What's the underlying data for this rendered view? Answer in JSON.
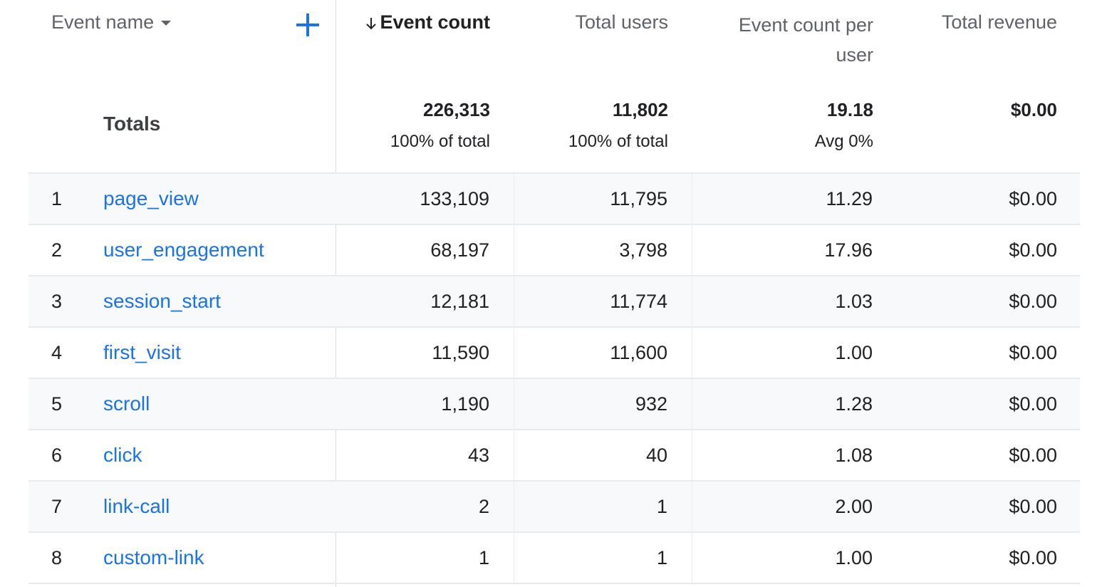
{
  "header": {
    "dimension_label": "Event name",
    "add_dimension_icon": "plus-icon",
    "sort_icon": "arrow-down-icon",
    "columns": [
      "Event count",
      "Total users",
      "Event count per",
      "user",
      "Total revenue"
    ]
  },
  "totals": {
    "label": "Totals",
    "event_count": "226,313",
    "event_count_sub": "100% of total",
    "total_users": "11,802",
    "total_users_sub": "100% of total",
    "per_user": "19.18",
    "per_user_sub": "Avg 0%",
    "revenue": "$0.00"
  },
  "rows": [
    {
      "index": "1",
      "name": "page_view",
      "event_count": "133,109",
      "total_users": "11,795",
      "per_user": "11.29",
      "revenue": "$0.00"
    },
    {
      "index": "2",
      "name": "user_engagement",
      "event_count": "68,197",
      "total_users": "3,798",
      "per_user": "17.96",
      "revenue": "$0.00"
    },
    {
      "index": "3",
      "name": "session_start",
      "event_count": "12,181",
      "total_users": "11,774",
      "per_user": "1.03",
      "revenue": "$0.00"
    },
    {
      "index": "4",
      "name": "first_visit",
      "event_count": "11,590",
      "total_users": "11,600",
      "per_user": "1.00",
      "revenue": "$0.00"
    },
    {
      "index": "5",
      "name": "scroll",
      "event_count": "1,190",
      "total_users": "932",
      "per_user": "1.28",
      "revenue": "$0.00"
    },
    {
      "index": "6",
      "name": "click",
      "event_count": "43",
      "total_users": "40",
      "per_user": "1.08",
      "revenue": "$0.00"
    },
    {
      "index": "7",
      "name": "link-call",
      "event_count": "2",
      "total_users": "1",
      "per_user": "2.00",
      "revenue": "$0.00"
    },
    {
      "index": "8",
      "name": "custom-link",
      "event_count": "1",
      "total_users": "1",
      "per_user": "1.00",
      "revenue": "$0.00"
    }
  ],
  "colors": {
    "link": "#1a73e8",
    "shaded_row": "#f8f9fa",
    "divider": "#dadce0"
  }
}
